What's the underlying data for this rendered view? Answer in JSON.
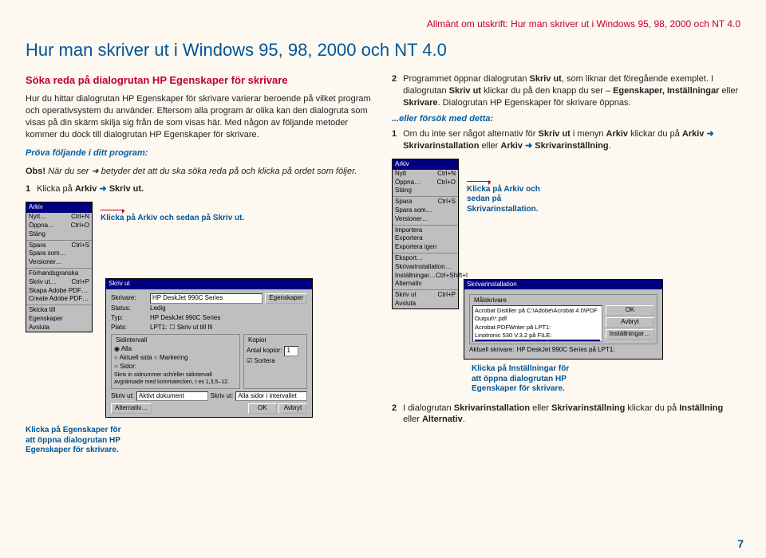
{
  "header_strip": "Allmänt om utskrift: Hur man skriver ut i Windows 95, 98, 2000 och NT 4.0",
  "h1": "Hur man skriver ut i Windows 95, 98, 2000 och NT 4.0",
  "h2": "Söka reda på dialogrutan HP Egenskaper för skrivare",
  "page_number": "7",
  "left": {
    "intro": "Hur du hittar dialogrutan HP Egenskaper för skrivare varierar beroende på vilket program och operativsystem du använder. Eftersom alla program är olika kan den dialogruta som visas på din skärm skilja sig från de som visas här. Med någon av följande metoder kommer du dock till dialogrutan HP Egenskaper för skrivare.",
    "prova": "Pröva följande i ditt program:",
    "obs_label": "Obs!",
    "obs_body": " När du ser ➜ betyder det att du ska söka reda på och klicka på ordet som följer.",
    "step1_num": "1",
    "step1_a": "Klicka på ",
    "step1_b": "Arkiv",
    "step1_c": " ➜ ",
    "step1_d": "Skriv ut.",
    "callout_arkiv": "Klicka på Arkiv och sedan på Skriv ut.",
    "callout_egenskaper": "Klicka på Egenskaper för att öppna dialogrutan HP Egenskaper för skrivare."
  },
  "right": {
    "p2_num": "2",
    "p2_text": "Programmet öppnar dialogrutan ",
    "p2_b1": "Skriv ut",
    "p2_c": ", som liknar det föregående exemplet. I dialogrutan ",
    "p2_b2": "Skriv ut",
    "p2_d": " klickar du på den knapp du ser – ",
    "p2_b3": "Egenskaper, Inställningar",
    "p2_e": " eller ",
    "p2_b4": "Skrivare",
    "p2_f": ". Dialogrutan HP Egenskaper för skrivare öppnas.",
    "try_hdr": "...eller försök med detta:",
    "p1b_num": "1",
    "p1b_a": "Om du inte ser något alternativ för ",
    "p1b_b1": "Skriv ut",
    "p1b_b": " i menyn ",
    "p1b_b2": "Arkiv",
    "p1b_c": " klickar du på ",
    "p1b_b3": "Arkiv",
    "p1b_arrow1": " ➜ ",
    "p1b_b4": "Skrivarinstallation",
    "p1b_d": " eller ",
    "p1b_b5": "Arkiv",
    "p1b_arrow2": " ➜ ",
    "p1b_b6": "Skrivarinställning",
    "p1b_e": ".",
    "callout_install_menu": "Klicka på Arkiv och sedan på Skrivarinstallation.",
    "callout_install_btn": "Klicka på Inställningar för att öppna dialogrutan HP Egenskaper för skrivare.",
    "p3_num": "2",
    "p3_a": "I dialogrutan ",
    "p3_b1": "Skrivarinstallation",
    "p3_b": " eller ",
    "p3_b2": "Skrivarinställning",
    "p3_c": " klickar du på ",
    "p3_b3": "Inställning",
    "p3_d": " eller ",
    "p3_b4": "Alternativ",
    "p3_e": "."
  },
  "menu": {
    "title": "Arkiv",
    "items": [
      [
        "Nytt…",
        "Ctrl+N"
      ],
      [
        "Öppna…",
        "Ctrl+O"
      ],
      [
        "Stäng",
        ""
      ],
      [
        "Spara",
        "Ctrl+S"
      ],
      [
        "Spara som…",
        ""
      ],
      [
        "Versioner…",
        ""
      ],
      [
        "Förhandsgranska",
        ""
      ],
      [
        "Skriv ut…",
        "Ctrl+P"
      ],
      [
        "Skapa Adobe PDF…",
        ""
      ],
      [
        "Create Adobe PDF…",
        ""
      ],
      [
        "Skicka till",
        ""
      ],
      [
        "Egenskaper",
        ""
      ],
      [
        "Avsluta",
        ""
      ]
    ],
    "items_b": [
      [
        "Nytt",
        "Ctrl+N"
      ],
      [
        "Öppna…",
        "Ctrl+O"
      ],
      [
        "Stäng",
        ""
      ],
      [
        "Spara",
        "Ctrl+S"
      ],
      [
        "Spara som…",
        ""
      ],
      [
        "Versioner…",
        ""
      ],
      [
        "Importera",
        ""
      ],
      [
        "Exportera",
        ""
      ],
      [
        "Exportera igen",
        ""
      ],
      [
        "Eksport…",
        ""
      ],
      [
        "Skrivarinstallation…",
        ""
      ],
      [
        "Inställningar…",
        "Ctrl+Shift+I"
      ],
      [
        "Alternativ",
        ""
      ],
      [
        "Skriv ut",
        "Ctrl+P"
      ],
      [
        "Avsluta",
        ""
      ]
    ]
  },
  "print_dialog": {
    "title": "Skriv ut",
    "printer_label": "Skrivare:",
    "printer_val": "HP DeskJet 990C Series",
    "egenskaper_btn": "Egenskaper",
    "status_label": "Status:",
    "status_val": "Ledig",
    "type_label": "Typ:",
    "type_val": "HP DeskJet 990C Series",
    "place_label": "Plats:",
    "place_val": "LPT1:",
    "to_file": "Skriv ut till fil",
    "range_title": "Sidintervall",
    "r1": "Alla",
    "r2": "Aktuell sida",
    "r3": "Markering",
    "r4": "Sidor:",
    "range_note": "Skriv in sidnummer och/eller sidintervall avgränsade med kommatecken, t ex 1,3,5–12.",
    "copies_title": "Kopior",
    "copies_label": "Antal kopior:",
    "copies_val": "1",
    "sortera": "Sortera",
    "skrivut_label": "Skriv ut:",
    "skrivut_val": "Aktivt dokument",
    "pages_label": "Skriv ut:",
    "pages_val": "Alla sidor i intervallet",
    "alt_btn": "Alternativ…",
    "ok": "OK",
    "cancel": "Avbryt"
  },
  "install_dialog": {
    "title": "Skrivarinstallation",
    "group": "Målskrivare",
    "items": [
      "Acrobat Distiller på C:\\Adobe\\Acrobat 4.0\\PDF Output\\*.pdf",
      "Acrobat PDFWriter på LPT1:",
      "Linotronic 530 V.3.2 på FILE:",
      "HP DeskJet 990C Series på LPT1:"
    ],
    "ok": "OK",
    "cancel": "Avbryt",
    "settings": "Inställningar…",
    "current_label": "Aktuell skrivare:",
    "current_val": "HP DeskJet 990C Series på LPT1:"
  }
}
